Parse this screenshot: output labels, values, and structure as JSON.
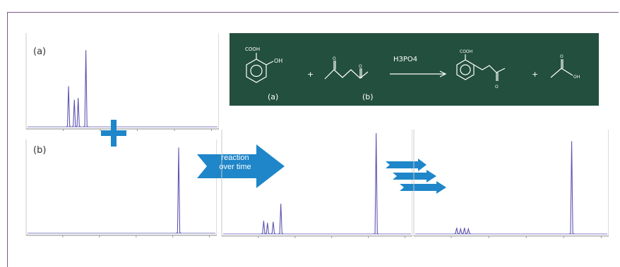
{
  "panels": {
    "a_label": "(a)",
    "b_label": "(b)"
  },
  "scheme": {
    "reactant_a_group": "COOH",
    "reactant_a_oh": "OH",
    "plus": "+",
    "catalyst": "H3PO4",
    "product_acid": "OH",
    "product_carbonyl": "O",
    "label_a": "(a)",
    "label_b": "(b)",
    "background": "#234f3e"
  },
  "arrow": {
    "line1": "reaction",
    "line2": "over time",
    "color": "#1e86c9"
  },
  "colors": {
    "spectrum": "#5e56b0",
    "plus": "#1e86c9"
  },
  "chart_data": [
    {
      "type": "line",
      "name": "spectrum-a",
      "peaks": [
        {
          "x": 0.22,
          "height": 0.45
        },
        {
          "x": 0.25,
          "height": 0.3
        },
        {
          "x": 0.27,
          "height": 0.32
        },
        {
          "x": 0.31,
          "height": 0.85
        }
      ]
    },
    {
      "type": "line",
      "name": "spectrum-b",
      "peaks": [
        {
          "x": 0.8,
          "height": 0.95
        }
      ]
    },
    {
      "type": "line",
      "name": "spectrum-mix",
      "peaks": [
        {
          "x": 0.22,
          "height": 0.13
        },
        {
          "x": 0.24,
          "height": 0.11
        },
        {
          "x": 0.27,
          "height": 0.12
        },
        {
          "x": 0.31,
          "height": 0.3
        },
        {
          "x": 0.81,
          "height": 1.0
        }
      ]
    },
    {
      "type": "line",
      "name": "spectrum-final",
      "peaks": [
        {
          "x": 0.22,
          "height": 0.06
        },
        {
          "x": 0.24,
          "height": 0.05
        },
        {
          "x": 0.26,
          "height": 0.06
        },
        {
          "x": 0.28,
          "height": 0.05
        },
        {
          "x": 0.81,
          "height": 0.92
        }
      ]
    }
  ]
}
